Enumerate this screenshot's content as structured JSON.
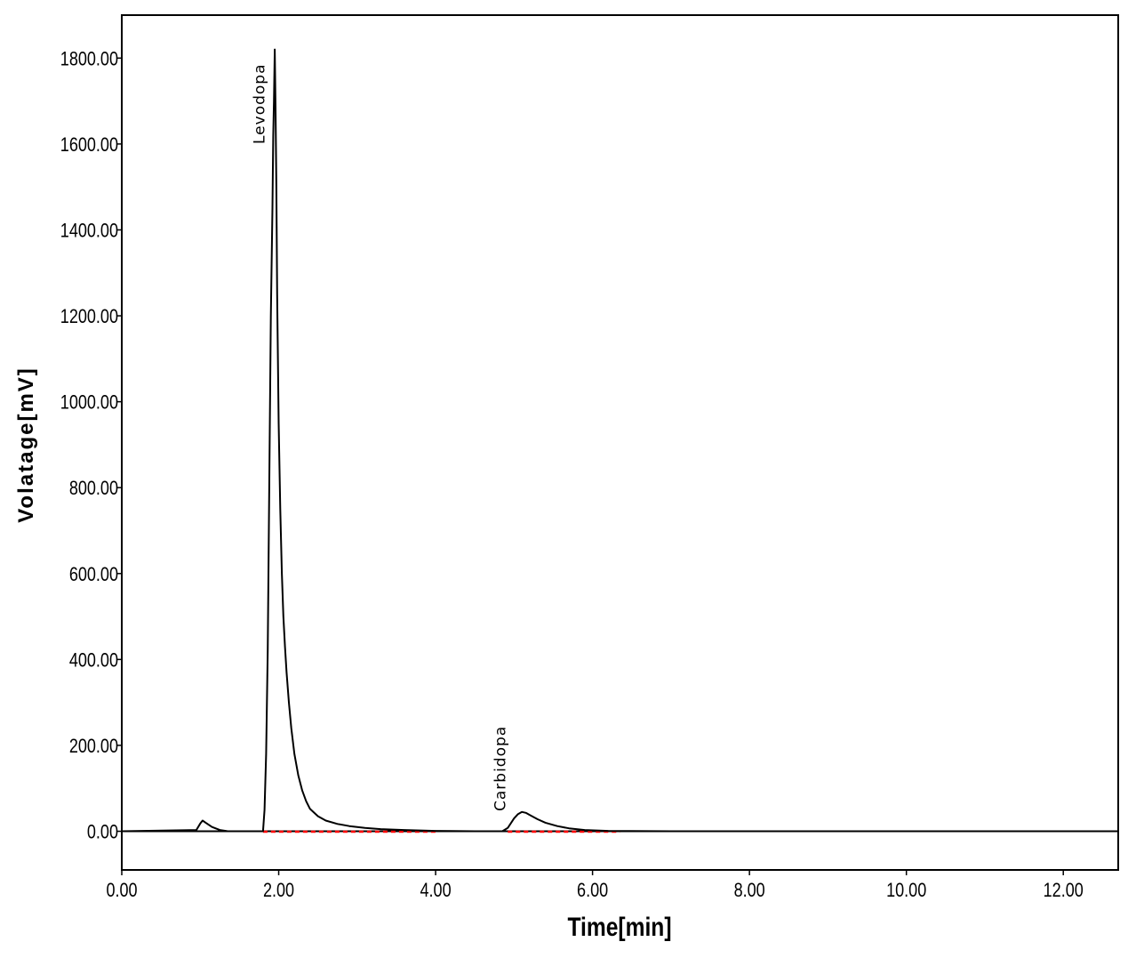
{
  "chart_data": {
    "type": "line",
    "title": "",
    "xlabel": "Time[min]",
    "ylabel": "Volatage[mV]",
    "xlim": [
      0,
      12.7
    ],
    "ylim": [
      -90,
      1900
    ],
    "x_ticks": [
      0,
      2,
      4,
      6,
      8,
      10,
      12
    ],
    "x_tick_labels": [
      "0.00",
      "2.00",
      "4.00",
      "6.00",
      "8.00",
      "10.00",
      "12.00"
    ],
    "y_ticks": [
      0,
      200,
      400,
      600,
      800,
      1000,
      1200,
      1400,
      1600,
      1800
    ],
    "y_tick_labels": [
      "0.00",
      "200.00",
      "400.00",
      "600.00",
      "800.00",
      "1000.00",
      "1200.00",
      "1400.00",
      "1600.00",
      "1800.00"
    ],
    "grid": false,
    "legend": "none",
    "series": [
      {
        "color": "#000000",
        "x": [
          0.0,
          0.95,
          1.0,
          1.03,
          1.07,
          1.15,
          1.25,
          1.35,
          1.8,
          1.82,
          1.84,
          1.86,
          1.88,
          1.9,
          1.92,
          1.93,
          1.94,
          1.95,
          1.96,
          1.97,
          1.98,
          2.0,
          2.02,
          2.04,
          2.06,
          2.08,
          2.1,
          2.13,
          2.16,
          2.2,
          2.25,
          2.3,
          2.35,
          2.4,
          2.5,
          2.6,
          2.75,
          2.9,
          3.1,
          3.3,
          3.6,
          4.0,
          4.5,
          4.85,
          4.92,
          5.0,
          5.05,
          5.1,
          5.15,
          5.2,
          5.3,
          5.4,
          5.55,
          5.7,
          5.9,
          6.2,
          7.0,
          9.0,
          12.7
        ],
        "y": [
          0,
          3,
          18,
          25,
          20,
          10,
          3,
          0,
          0,
          50,
          180,
          420,
          800,
          1200,
          1450,
          1620,
          1700,
          1820,
          1680,
          1500,
          1250,
          950,
          750,
          600,
          500,
          430,
          370,
          300,
          240,
          180,
          130,
          95,
          70,
          52,
          35,
          25,
          17,
          12,
          8,
          5,
          3,
          1,
          0,
          0,
          8,
          30,
          40,
          45,
          43,
          38,
          28,
          20,
          12,
          7,
          3,
          1,
          0,
          0,
          0
        ]
      }
    ],
    "baselines": [
      {
        "color": "#ff0000",
        "x": [
          1.8,
          4.02
        ]
      },
      {
        "color": "#ff0000",
        "x": [
          4.92,
          6.35
        ]
      }
    ],
    "annotations": [
      {
        "text": "Levodopa",
        "x": 1.93
      },
      {
        "text": "Carbidopa",
        "x": 5.0
      }
    ]
  }
}
